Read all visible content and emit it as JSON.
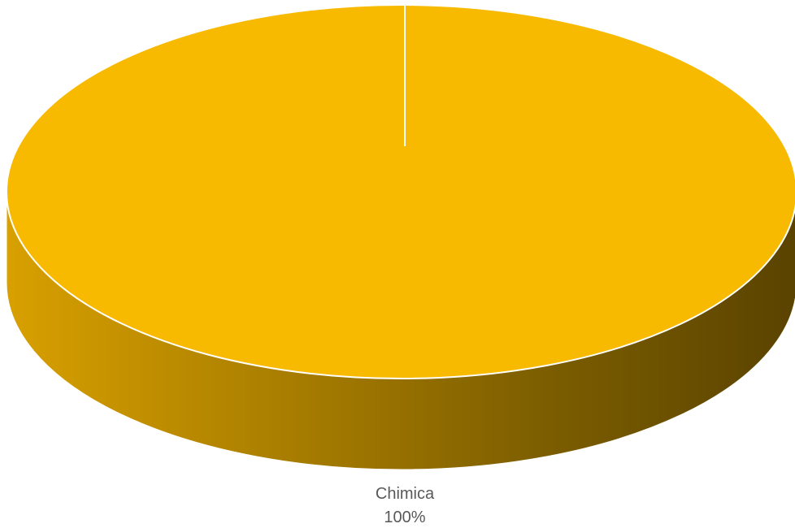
{
  "chart_data": {
    "type": "pie",
    "title": "",
    "slices": [
      {
        "label": "Chimica",
        "value": 100,
        "percent_label": "100%",
        "color": "#F7BA00",
        "side_color_light": "#D8A000",
        "side_color_dark": "#5A4300"
      }
    ],
    "legend": "none",
    "style": "3d"
  }
}
